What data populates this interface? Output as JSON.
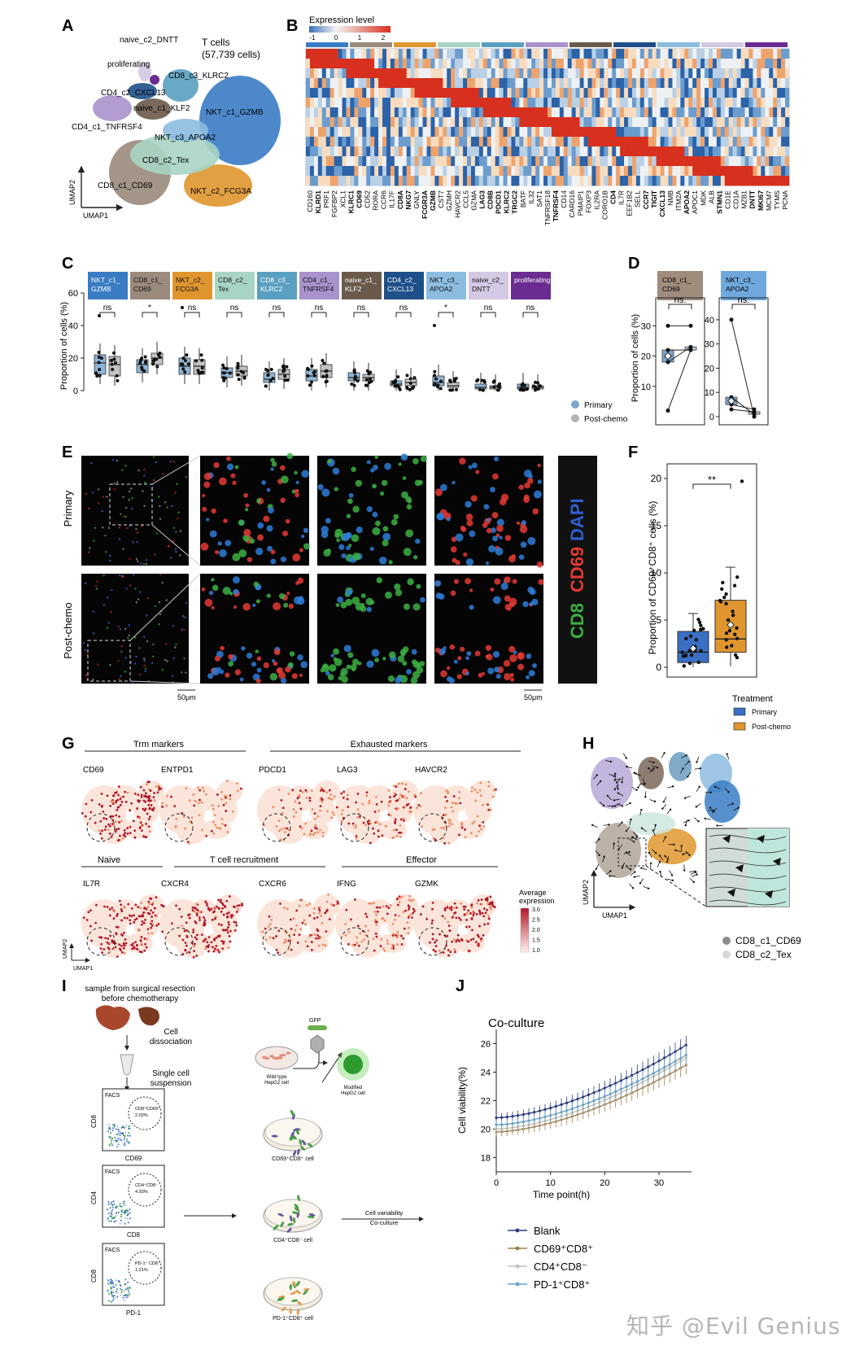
{
  "panel_letters": [
    "A",
    "B",
    "C",
    "D",
    "E",
    "F",
    "G",
    "H",
    "I",
    "J"
  ],
  "panel_a": {
    "title_line1": "T cells",
    "title_line2": "(57,739 cells)",
    "x_axis": "UMAP1",
    "y_axis": "UMAP2",
    "clusters": [
      "naive_c2_DNTT",
      "proliferating",
      "CD8_c3_KLRC2",
      "CD4_c2_CXCL13",
      "naive_c1_KLF2",
      "NKT_c1_GZMB",
      "CD4_c1_TNFRSF4",
      "NKT_c3_APOA2",
      "CD8_c2_Tex",
      "CD8_c1_CD69",
      "NKT_c2_FCG3A"
    ],
    "colors": {
      "NKT_c1_GZMB": "#3a7cc4",
      "CD8_c1_CD69": "#9a8a7c",
      "NKT_c2_FCG3A": "#e0962e",
      "CD8_c2_Tex": "#a8d4c4",
      "CD8_c3_KLRC2": "#5aa0c0",
      "CD4_c1_TNFRSF4": "#a892cc",
      "naive_c1_KLF2": "#6b5a4c",
      "CD4_c2_CXCL13": "#1e4f88",
      "NKT_c3_APOA2": "#8cbce0",
      "naive_c2_DNTT": "#d4c8e4",
      "proliferating": "#6a2c90"
    }
  },
  "panel_b": {
    "legend_title": "Expression level",
    "legend_ticks": [
      "-1",
      "0",
      "1",
      "2"
    ],
    "genes": [
      "CD160",
      "KLRD1",
      "PRF1",
      "FGFBP2",
      "XCL1",
      "KLRC1",
      "CD69",
      "CD52",
      "RORA",
      "CCR6",
      "IL17F",
      "CD8A",
      "NKG7",
      "GNLY",
      "FCGR3A",
      "GZMB",
      "CST7",
      "GZMH",
      "HAVCR2",
      "CCL5",
      "GZMA",
      "LAG3",
      "CD8B",
      "PDCD1",
      "KLRC2",
      "TRGC2",
      "BATF",
      "IL32",
      "SAT1",
      "TNFRSF18",
      "TNFRSF4",
      "CD14",
      "CARD16",
      "PMAIP1",
      "FOXP3",
      "IL2RA",
      "CORO1B",
      "CD4",
      "IL7R",
      "EEF1B2",
      "SELL",
      "CCR7",
      "TIGIT",
      "CXCL13",
      "NMB",
      "ITM2A",
      "APOA2",
      "APOC1",
      "MDK",
      "ALB",
      "STMN1",
      "CD1E",
      "CD1A",
      "MZB1",
      "DNTT",
      "MKI67",
      "MCM7",
      "TYMS",
      "PCNA"
    ]
  },
  "panel_c": {
    "y_axis": "Proportion of cells (%)",
    "legend": [
      "Primary",
      "Post-chemo"
    ],
    "clusters": [
      {
        "label": "NKT_c1_\nGZMB",
        "color": "#3a7cc4",
        "sig": "ns"
      },
      {
        "label": "CD8_c1_\nCD69",
        "color": "#9a8a7c",
        "sig": "*"
      },
      {
        "label": "NKT_c2_\nFCG3A",
        "color": "#e0962e",
        "sig": "ns"
      },
      {
        "label": "CD8_c2_\nTex",
        "color": "#a8d4c4",
        "sig": "ns"
      },
      {
        "label": "CD8_c3_\nKLRC2",
        "color": "#5aa0c0",
        "sig": "ns"
      },
      {
        "label": "CD4_c1_\nTNFRSF4",
        "color": "#a892cc",
        "sig": "ns"
      },
      {
        "label": "naive_c1_\nKLF2",
        "color": "#6b5a4c",
        "sig": "ns"
      },
      {
        "label": "CD4_c2_\nCXCL13",
        "color": "#1e4f88",
        "sig": "ns"
      },
      {
        "label": "NKT_c3_\nAPOA2",
        "color": "#8cbce0",
        "sig": "*"
      },
      {
        "label": "naive_c2_\nDNTT",
        "color": "#d4c8e4",
        "sig": "ns"
      },
      {
        "label": "proliferating",
        "color": "#6a2c90",
        "sig": "ns"
      }
    ]
  },
  "panel_d": {
    "y_axis": "Proportion of cells (%)",
    "left_title": "CD8_c1_\nCD69",
    "right_title": "NKT_c3_\nAPOA2",
    "sig": "ns."
  },
  "panel_e": {
    "row_labels": [
      "Primary",
      "Post-chemo"
    ],
    "channel_labels": [
      "CD8",
      "CD69",
      "DAPI"
    ],
    "scale_bar": "50μm"
  },
  "panel_f": {
    "y_axis": "Proportion of CD69⁺CD8⁺ cells (%)",
    "sig": "**",
    "legend_title": "Treatment",
    "legend": [
      "Primary",
      "Post-chemo"
    ]
  },
  "panel_g": {
    "group_labels": [
      "Trm markers",
      "Exhausted markers",
      "Naive",
      "T cell recruitment",
      "Effector"
    ],
    "genes_row1": [
      "CD69",
      "ENTPD1",
      "PDCD1",
      "LAG3",
      "HAVCR2"
    ],
    "genes_row2": [
      "IL7R",
      "CXCR4",
      "CXCR6",
      "IFNG",
      "GZMK"
    ],
    "legend_title": "Average\nexpression",
    "legend_ticks": [
      "3.0",
      "2.5",
      "2.0",
      "1.5",
      "1.0"
    ],
    "x_axis": "UMAP1",
    "y_axis": "UMAP2"
  },
  "panel_h": {
    "x_axis": "UMAP1",
    "y_axis": "UMAP2",
    "legend": [
      "CD8_c1_CD69",
      "CD8_c2_Tex"
    ]
  },
  "panel_i": {
    "step1": "sample from surgical resection\nbefore chemotherapy",
    "step2": "Cell\ndissociation",
    "step3": "Single cell\nsuspension",
    "facs": "FACS",
    "facs1_x": "CD69",
    "facs1_y": "CD8",
    "facs1_gate": "CD8⁺CD69⁺\n2.03%",
    "facs2_x": "CD8",
    "facs2_y": "CD4",
    "facs2_gate": "CD4⁺CD8⁻\n4.93%",
    "facs3_x": "PD-1",
    "facs3_y": "CD8",
    "facs3_gate": "PD-1⁺ CD8⁺\n1.21%",
    "gfp": "GFP",
    "wild": "Wild type\nHepG2 cell",
    "modified": "Modified\nHepG2 cell",
    "dish1": "CD69⁺CD8⁺ cell",
    "dish2": "CD4⁺CD8⁻ cell",
    "dish3": "PD-1⁺CD8⁺ cell",
    "arrow_label": "Cell variability\nCo-culture"
  },
  "panel_j": {
    "title": "Co-culture",
    "xlabel": "Time point(h)",
    "ylabel": "Cell viability(%)"
  },
  "watermark": "知乎 @Evil Genius",
  "chart_data": [
    {
      "type": "scatter",
      "panel": "C",
      "title": "",
      "ylabel": "Proportion of cells (%)",
      "ylim": [
        0,
        60
      ],
      "yticks": [
        0,
        20,
        40,
        60
      ],
      "categories": [
        "NKT_c1_GZMB",
        "CD8_c1_CD69",
        "NKT_c2_FCG3A",
        "CD8_c2_Tex",
        "CD8_c3_KLRC2",
        "CD4_c1_TNFRSF4",
        "naive_c1_KLF2",
        "CD4_c2_CXCL13",
        "NKT_c3_APOA2",
        "naive_c2_DNTT",
        "proliferating"
      ],
      "series": [
        {
          "name": "Primary",
          "medians": [
            17,
            16,
            15,
            11,
            7,
            9,
            8,
            4,
            5,
            2,
            2
          ],
          "q1": [
            10,
            11,
            10,
            8,
            5,
            6,
            6,
            3,
            3,
            1,
            1
          ],
          "q3": [
            22,
            19,
            20,
            14,
            11,
            13,
            11,
            6,
            9,
            4,
            4
          ]
        },
        {
          "name": "Post-chemo",
          "medians": [
            16,
            20,
            15,
            12,
            10,
            12,
            8,
            5,
            3,
            2,
            2
          ],
          "q1": [
            9,
            16,
            10,
            9,
            7,
            8,
            6,
            3,
            2,
            1,
            1
          ],
          "q3": [
            21,
            23,
            19,
            15,
            13,
            16,
            10,
            7,
            5,
            3,
            3
          ]
        }
      ],
      "significance": [
        "ns",
        "*",
        "ns",
        "ns",
        "ns",
        "ns",
        "ns",
        "ns",
        "*",
        "ns",
        "ns"
      ]
    },
    {
      "type": "line",
      "panel": "D",
      "ylabel": "Proportion of cells (%)",
      "subplots": [
        {
          "title": "CD8_c1_CD69",
          "ylim": [
            0,
            40
          ],
          "yticks": [
            10,
            20,
            30
          ],
          "Primary": [
            18,
            22,
            2,
            30
          ],
          "Post-chemo": [
            23,
            22,
            22,
            30
          ]
        },
        {
          "title": "NKT_c3_APOA2",
          "ylim": [
            0,
            45
          ],
          "yticks": [
            0,
            10,
            20,
            30,
            40
          ],
          "Primary": [
            40,
            8,
            3,
            5
          ],
          "Post-chemo": [
            0,
            1,
            2,
            3
          ]
        }
      ],
      "significance": "ns."
    },
    {
      "type": "scatter",
      "panel": "F",
      "ylabel": "Proportion of CD69⁺CD8⁺ cells (%)",
      "ylim": [
        0,
        20
      ],
      "yticks": [
        0,
        5,
        10,
        15,
        20
      ],
      "groups": [
        {
          "name": "Primary",
          "color": "#3a6fc4",
          "q1": 0.5,
          "median": 1.6,
          "q3": 3.8,
          "whisker_low": 0,
          "whisker_high": 5.7,
          "mean": 2.0
        },
        {
          "name": "Post-chemo",
          "color": "#e0962e",
          "q1": 1.6,
          "median": 3.0,
          "q3": 7.1,
          "whisker_low": 0.1,
          "whisker_high": 10.6,
          "mean": 4.5,
          "outlier": 19.7
        }
      ],
      "significance": "**"
    },
    {
      "type": "line",
      "panel": "J",
      "title": "Co-culture",
      "xlabel": "Time point(h)",
      "ylabel": "Cell viability(%)",
      "xlim": [
        0,
        36
      ],
      "ylim": [
        17,
        27
      ],
      "xticks": [
        0,
        10,
        20,
        30
      ],
      "yticks": [
        18,
        20,
        22,
        24,
        26
      ],
      "series": [
        {
          "name": "Blank",
          "color": "#2c3c7c",
          "start": 20.8,
          "end": 25.9
        },
        {
          "name": "CD69⁺CD8⁺",
          "color": "#9c7e4c",
          "start": 19.8,
          "end": 24.5
        },
        {
          "name": "CD4⁺CD8⁻",
          "color": "#c8c0b4",
          "start": 20.0,
          "end": 25.0
        },
        {
          "name": "PD-1⁺CD8⁺",
          "color": "#6aa0c4",
          "start": 20.3,
          "end": 25.2
        }
      ]
    }
  ]
}
